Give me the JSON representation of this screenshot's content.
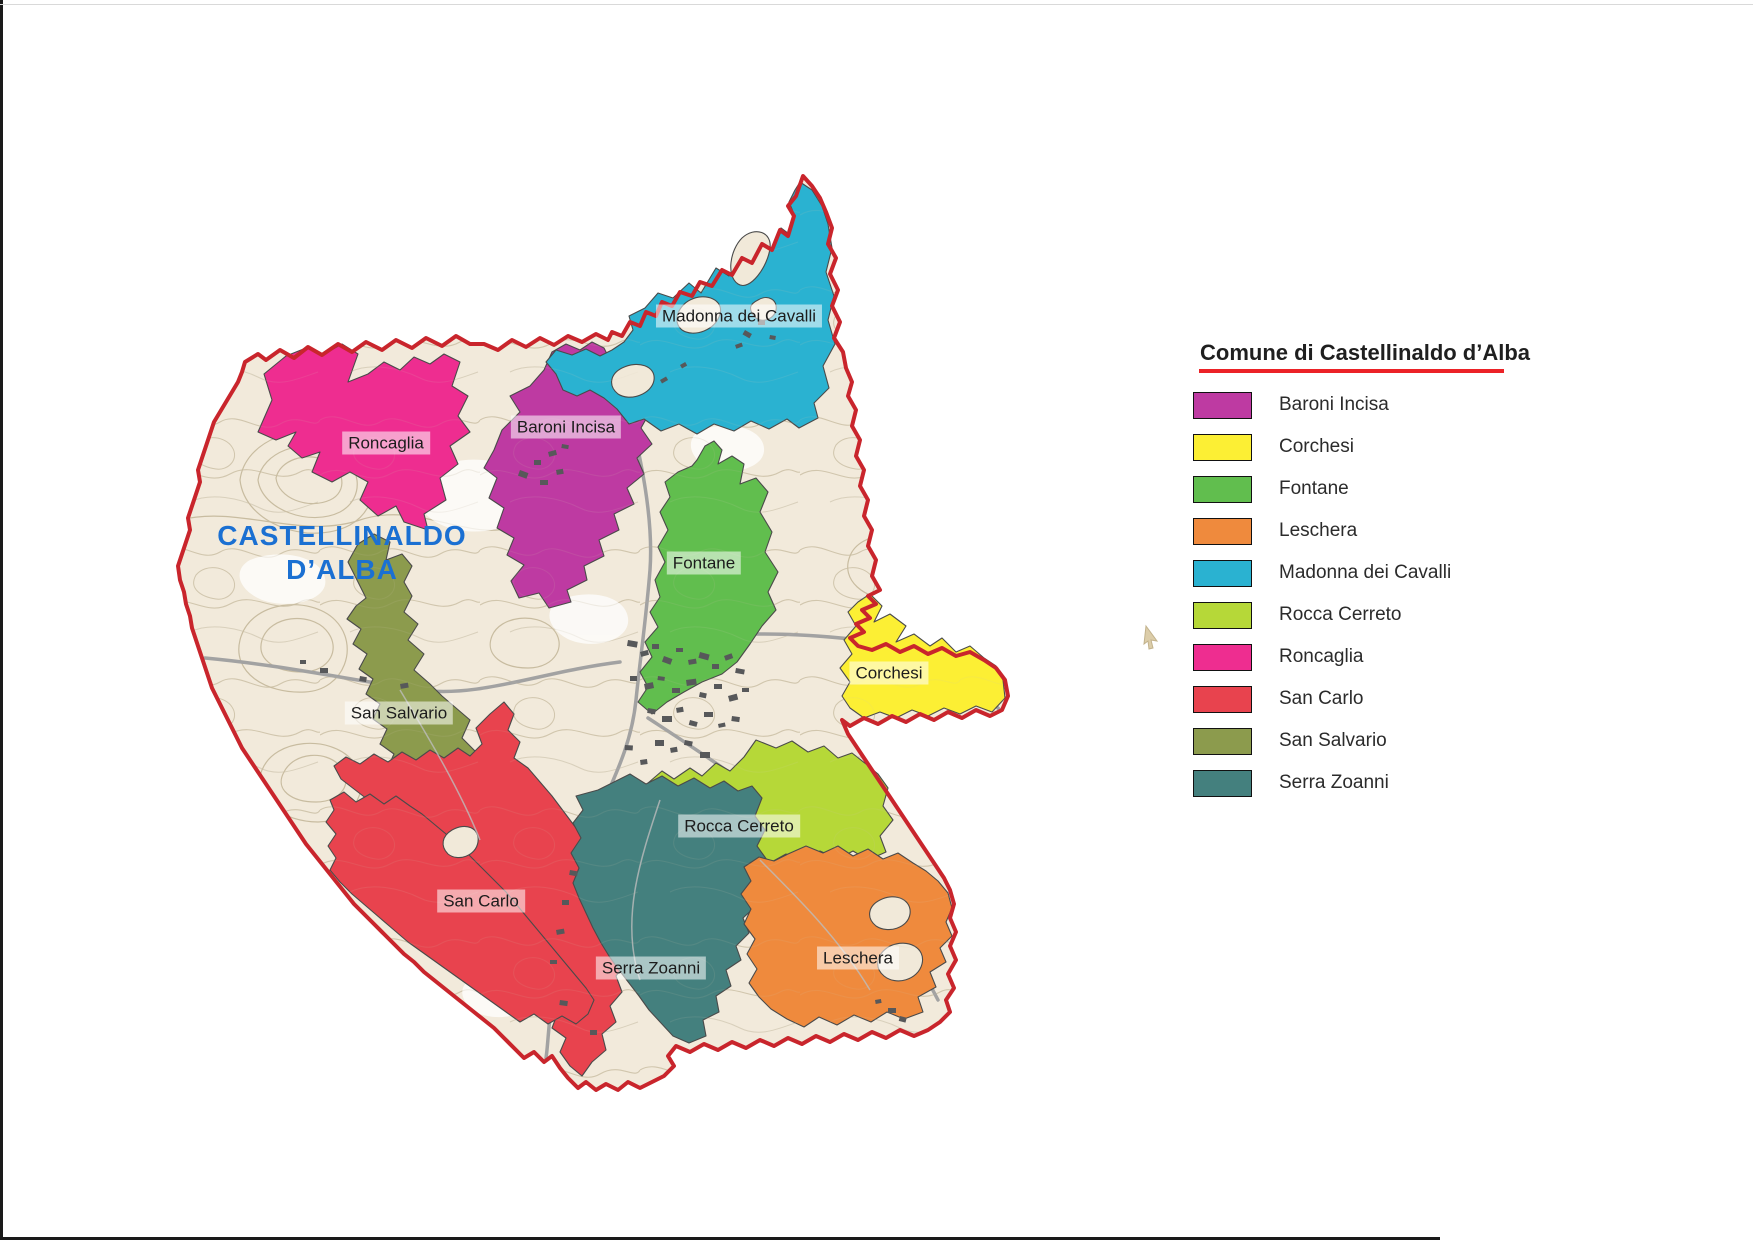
{
  "legend": {
    "title": "Comune di Castellinaldo d’Alba",
    "underline_color": "#ec2227",
    "items": [
      {
        "label": "Baroni Incisa",
        "color": "#be3aa2"
      },
      {
        "label": "Corchesi",
        "color": "#fcef34"
      },
      {
        "label": "Fontane",
        "color": "#61be4e"
      },
      {
        "label": "Leschera",
        "color": "#ef8a3d"
      },
      {
        "label": "Madonna dei Cavalli",
        "color": "#2ab2d1"
      },
      {
        "label": "Rocca Cerreto",
        "color": "#b6d838"
      },
      {
        "label": "Roncaglia",
        "color": "#ee2d90"
      },
      {
        "label": "San Carlo",
        "color": "#e8434e"
      },
      {
        "label": "San Salvario",
        "color": "#8c9b4d"
      },
      {
        "label": "Serra Zoanni",
        "color": "#44807e"
      }
    ]
  },
  "map": {
    "title_line1": "CASTELLINALDO",
    "title_line2": "D’ALBA",
    "title_color": "#1b70d2",
    "boundary_color": "#c9252c",
    "labels": {
      "madonna": "Madonna dei Cavalli",
      "roncaglia": "Roncaglia",
      "baroni": "Baroni Incisa",
      "fontane": "Fontane",
      "corchesi": "Corchesi",
      "sansalvario": "San Salvario",
      "roccacerreto": "Rocca Cerreto",
      "sancarlo": "San Carlo",
      "serrazoanni": "Serra Zoanni",
      "leschera": "Leschera"
    }
  }
}
